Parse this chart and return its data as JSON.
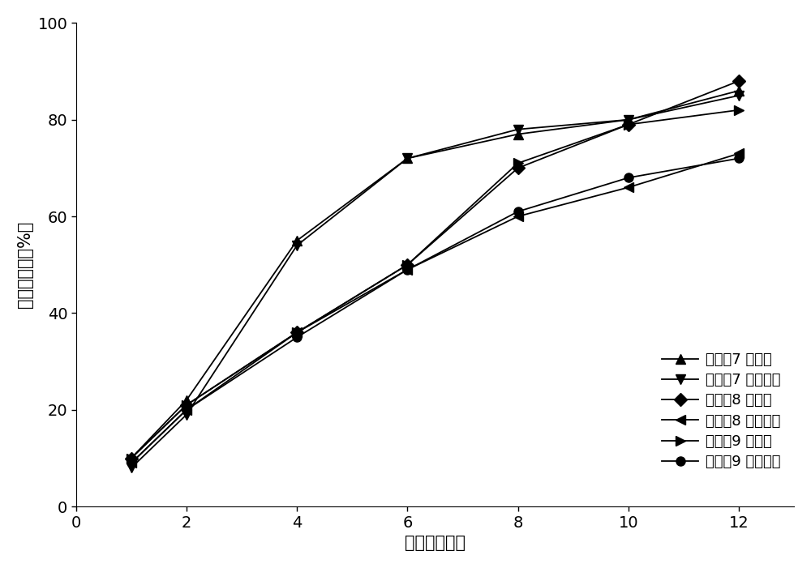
{
  "time": [
    1,
    2,
    4,
    6,
    8,
    10,
    12
  ],
  "series": [
    {
      "name": "实施佹7 缓沙坦",
      "values": [
        10,
        22,
        55,
        72,
        77,
        80,
        86
      ],
      "marker": "^",
      "color": "#000000"
    },
    {
      "name": "实施佹7 沙库巴曲",
      "values": [
        8,
        19,
        54,
        72,
        78,
        80,
        85
      ],
      "marker": "v",
      "color": "#000000"
    },
    {
      "name": "实施佹8 缓沙坦",
      "values": [
        10,
        21,
        36,
        50,
        70,
        79,
        88
      ],
      "marker": "D",
      "color": "#000000"
    },
    {
      "name": "实施佹8 沙库巴曲",
      "values": [
        9,
        20,
        36,
        49,
        60,
        66,
        73
      ],
      "marker": "<",
      "color": "#000000"
    },
    {
      "name": "实施佹9 缓沙坦",
      "values": [
        10,
        21,
        36,
        50,
        71,
        79,
        82
      ],
      "marker": ">",
      "color": "#000000"
    },
    {
      "name": "实施佹9 沙库巴曲",
      "values": [
        9,
        20,
        35,
        49,
        61,
        68,
        72
      ],
      "marker": "o",
      "color": "#000000"
    }
  ],
  "xlabel": "时间（小时）",
  "ylabel": "累积释放度（%）",
  "xlim": [
    0,
    13
  ],
  "ylim": [
    0,
    100
  ],
  "xticks": [
    0,
    2,
    4,
    6,
    8,
    10,
    12
  ],
  "yticks": [
    0,
    20,
    40,
    60,
    80,
    100
  ],
  "legend_loc": "lower right",
  "background_color": "#ffffff",
  "line_color": "#000000",
  "line_width": 1.3,
  "marker_size": 8,
  "tick_font_size": 14,
  "legend_font_size": 13,
  "axis_label_font_size": 15
}
